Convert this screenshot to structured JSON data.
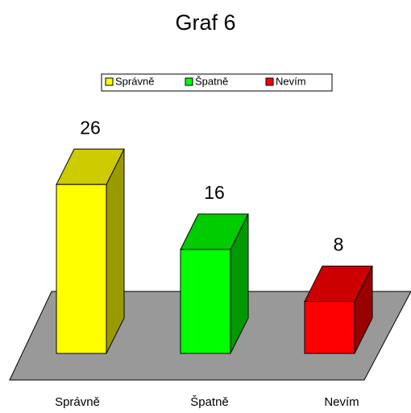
{
  "chart_data": {
    "type": "bar3d",
    "title": "Graf 6",
    "categories": [
      "Správně",
      "Špatně",
      "Nevím"
    ],
    "values": [
      26,
      16,
      8
    ],
    "colors": [
      "#ffff00",
      "#00ff00",
      "#ff0000"
    ],
    "legend": "top"
  }
}
